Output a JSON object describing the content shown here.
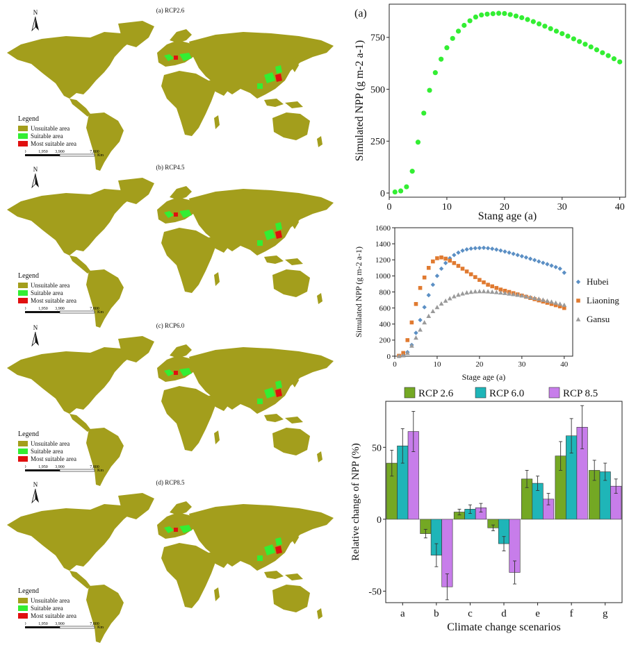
{
  "colors": {
    "unsuitable": "#a39e1c",
    "suitable": "#33ee33",
    "most_suitable": "#e01010",
    "ocean": "#ffffff"
  },
  "maps": [
    {
      "title": "(a) RCP2.6",
      "legend_title": "Legend",
      "legend_items": [
        "Unsuitable area",
        "Suitable area",
        "Most suitable area"
      ],
      "scale_ticks": [
        "0",
        "1,950",
        "3,900",
        "7,800"
      ],
      "scale_unit": "Km",
      "north": "N"
    },
    {
      "title": "(b) RCP4.5",
      "legend_title": "Legend",
      "legend_items": [
        "Unsuitable area",
        "Suitable area",
        "Most suitable area"
      ],
      "scale_ticks": [
        "0",
        "1,950",
        "3,900",
        "7,800"
      ],
      "scale_unit": "Km",
      "north": "N"
    },
    {
      "title": "(c) RCP6.0",
      "legend_title": "Legend",
      "legend_items": [
        "Unsuitable area",
        "Suitable area",
        "Most suitable area"
      ],
      "scale_ticks": [
        "0",
        "1,950",
        "3,900",
        "7,800"
      ],
      "scale_unit": "Km",
      "north": "N"
    },
    {
      "title": "(d) RCP8.5",
      "legend_title": "Legend",
      "legend_items": [
        "Unsuitable area",
        "Suitable area",
        "Most suitable area"
      ],
      "scale_ticks": [
        "0",
        "1,950",
        "3,900",
        "7,800"
      ],
      "scale_unit": "Km",
      "north": "N"
    }
  ],
  "chart_data": [
    {
      "type": "scatter",
      "panel_label": "(a)",
      "xlabel": "Stang age (a)",
      "ylabel": "Simulated NPP (g m-2 a-1)",
      "xlim": [
        0,
        41
      ],
      "ylim": [
        -20,
        910
      ],
      "xticks": [
        0,
        10,
        20,
        30,
        40
      ],
      "yticks": [
        0,
        250,
        500,
        750
      ],
      "grid": false,
      "color": "#33ee33",
      "x": [
        1,
        2,
        3,
        4,
        5,
        6,
        7,
        8,
        9,
        10,
        11,
        12,
        13,
        14,
        15,
        16,
        17,
        18,
        19,
        20,
        21,
        22,
        23,
        24,
        25,
        26,
        27,
        28,
        29,
        30,
        31,
        32,
        33,
        34,
        35,
        36,
        37,
        38,
        39,
        40
      ],
      "y": [
        5,
        10,
        30,
        105,
        245,
        385,
        495,
        580,
        645,
        700,
        745,
        780,
        808,
        830,
        848,
        858,
        862,
        864,
        866,
        865,
        860,
        853,
        845,
        836,
        826,
        815,
        804,
        792,
        780,
        768,
        756,
        743,
        730,
        717,
        704,
        690,
        676,
        662,
        647,
        632
      ]
    },
    {
      "type": "scatter",
      "xlabel": "Stage age (a)",
      "ylabel": "Simulated NPP (g m-2 a-1)",
      "xlim": [
        0,
        42
      ],
      "ylim": [
        0,
        1600
      ],
      "xticks": [
        0,
        10,
        20,
        30,
        40
      ],
      "yticks": [
        0,
        200,
        400,
        600,
        800,
        1000,
        1200,
        1400,
        1600
      ],
      "legend_position": "right",
      "x": [
        1,
        2,
        3,
        4,
        5,
        6,
        7,
        8,
        9,
        10,
        11,
        12,
        13,
        14,
        15,
        16,
        17,
        18,
        19,
        20,
        21,
        22,
        23,
        24,
        25,
        26,
        27,
        28,
        29,
        30,
        31,
        32,
        33,
        34,
        35,
        36,
        37,
        38,
        39,
        40
      ],
      "series": [
        {
          "name": "Hubei",
          "color": "#5b8fc4",
          "marker": "diamond",
          "values": [
            2,
            15,
            50,
            140,
            290,
            450,
            610,
            760,
            890,
            1000,
            1090,
            1160,
            1220,
            1260,
            1290,
            1315,
            1330,
            1340,
            1345,
            1348,
            1350,
            1345,
            1338,
            1328,
            1316,
            1303,
            1290,
            1275,
            1260,
            1245,
            1230,
            1213,
            1197,
            1180,
            1163,
            1146,
            1128,
            1110,
            1090,
            1040
          ]
        },
        {
          "name": "Liaoning",
          "color": "#e07a30",
          "marker": "square",
          "values": [
            5,
            40,
            200,
            420,
            650,
            850,
            980,
            1100,
            1180,
            1220,
            1230,
            1215,
            1190,
            1160,
            1125,
            1090,
            1055,
            1020,
            985,
            950,
            920,
            890,
            870,
            850,
            830,
            815,
            800,
            785,
            770,
            755,
            740,
            725,
            710,
            695,
            680,
            665,
            650,
            635,
            620,
            600
          ]
        },
        {
          "name": "Gansu",
          "color": "#9a9a9a",
          "marker": "triangle",
          "values": [
            2,
            10,
            40,
            130,
            230,
            330,
            420,
            500,
            560,
            610,
            655,
            690,
            720,
            745,
            765,
            780,
            792,
            800,
            806,
            808,
            808,
            806,
            802,
            797,
            792,
            786,
            779,
            772,
            764,
            755,
            745,
            735,
            725,
            714,
            702,
            690,
            678,
            665,
            652,
            638
          ]
        }
      ]
    },
    {
      "type": "bar",
      "xlabel": "Climate change scenarios",
      "ylabel": "Relative change of NPP (%)",
      "categories": [
        "a",
        "b",
        "c",
        "d",
        "e",
        "f",
        "g"
      ],
      "ylim": [
        -58,
        82
      ],
      "yticks": [
        -50,
        0,
        50
      ],
      "grid": false,
      "legend_position": "top",
      "series": [
        {
          "name": "RCP 2.6",
          "color": "#74a824",
          "values": [
            39,
            -10,
            5,
            -6,
            28,
            44,
            34
          ],
          "errors": [
            9,
            3,
            2,
            2,
            6,
            10,
            7
          ]
        },
        {
          "name": "RCP 6.0",
          "color": "#1fb5b8",
          "values": [
            51,
            -25,
            7,
            -17,
            25,
            58,
            33
          ],
          "errors": [
            12,
            8,
            3,
            5,
            5,
            12,
            6
          ]
        },
        {
          "name": "RCP 8.5",
          "color": "#c77dea",
          "values": [
            61,
            -47,
            8,
            -37,
            14,
            64,
            23
          ],
          "errors": [
            14,
            9,
            3,
            8,
            4,
            15,
            5
          ]
        }
      ]
    }
  ]
}
